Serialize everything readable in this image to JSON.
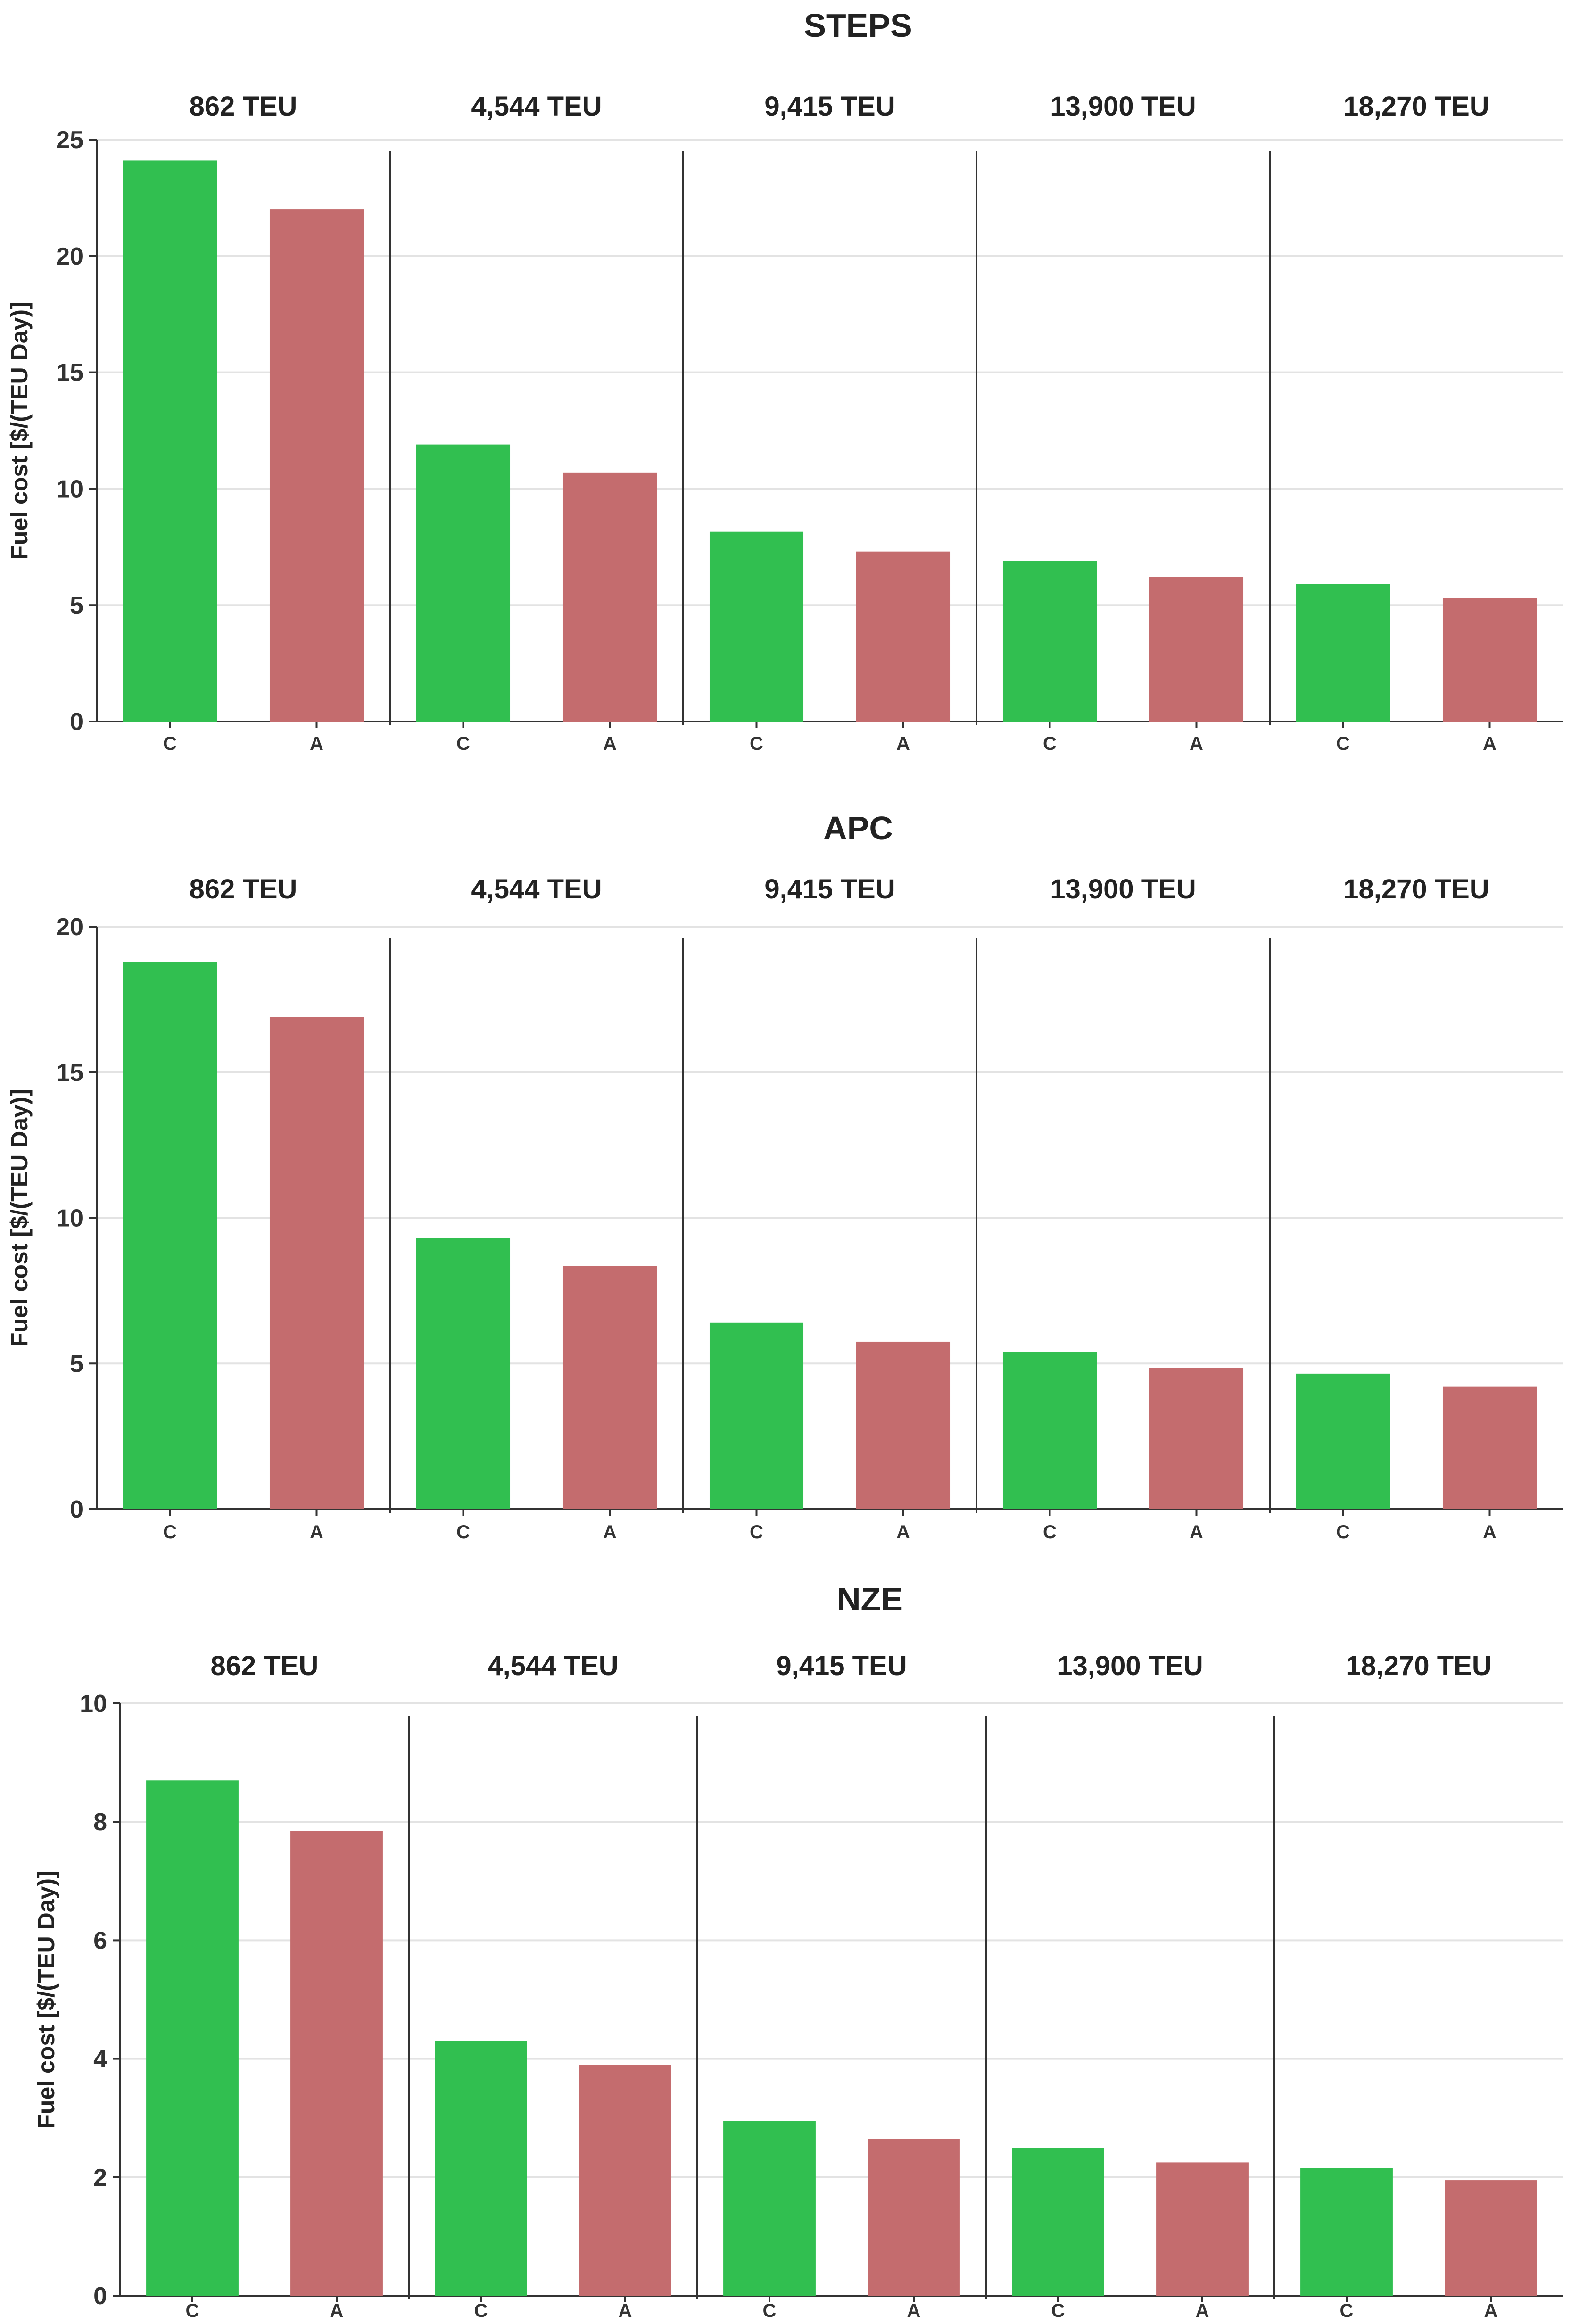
{
  "chart_data": [
    {
      "type": "bar",
      "title": "STEPS",
      "ylabel": "Fuel cost [$/(TEU Day)]",
      "xlabel": "",
      "ylim": [
        0,
        25
      ],
      "yticks": [
        0,
        5,
        10,
        15,
        20,
        25
      ],
      "groups": [
        {
          "label": "862 TEU",
          "bars": [
            {
              "category": "C",
              "value": 24.1
            },
            {
              "category": "A",
              "value": 22.0
            }
          ]
        },
        {
          "label": "4,544 TEU",
          "bars": [
            {
              "category": "C",
              "value": 11.9
            },
            {
              "category": "A",
              "value": 10.7
            }
          ]
        },
        {
          "label": "9,415 TEU",
          "bars": [
            {
              "category": "C",
              "value": 8.15
            },
            {
              "category": "A",
              "value": 7.3
            }
          ]
        },
        {
          "label": "13,900 TEU",
          "bars": [
            {
              "category": "C",
              "value": 6.9
            },
            {
              "category": "A",
              "value": 6.2
            }
          ]
        },
        {
          "label": "18,270 TEU",
          "bars": [
            {
              "category": "C",
              "value": 5.9
            },
            {
              "category": "A",
              "value": 5.3
            }
          ]
        }
      ]
    },
    {
      "type": "bar",
      "title": "APC",
      "ylabel": "Fuel cost [$/(TEU Day)]",
      "xlabel": "",
      "ylim": [
        0,
        20
      ],
      "yticks": [
        0,
        5,
        10,
        15,
        20
      ],
      "groups": [
        {
          "label": "862 TEU",
          "bars": [
            {
              "category": "C",
              "value": 18.8
            },
            {
              "category": "A",
              "value": 16.9
            }
          ]
        },
        {
          "label": "4,544 TEU",
          "bars": [
            {
              "category": "C",
              "value": 9.3
            },
            {
              "category": "A",
              "value": 8.35
            }
          ]
        },
        {
          "label": "9,415 TEU",
          "bars": [
            {
              "category": "C",
              "value": 6.4
            },
            {
              "category": "A",
              "value": 5.75
            }
          ]
        },
        {
          "label": "13,900 TEU",
          "bars": [
            {
              "category": "C",
              "value": 5.4
            },
            {
              "category": "A",
              "value": 4.85
            }
          ]
        },
        {
          "label": "18,270 TEU",
          "bars": [
            {
              "category": "C",
              "value": 4.65
            },
            {
              "category": "A",
              "value": 4.2
            }
          ]
        }
      ]
    },
    {
      "type": "bar",
      "title": "NZE",
      "ylabel": "Fuel cost [$/(TEU Day)]",
      "xlabel": "",
      "ylim": [
        0,
        10
      ],
      "yticks": [
        0,
        2,
        4,
        6,
        8,
        10
      ],
      "groups": [
        {
          "label": "862 TEU",
          "bars": [
            {
              "category": "C",
              "value": 8.7
            },
            {
              "category": "A",
              "value": 7.85
            }
          ]
        },
        {
          "label": "4,544 TEU",
          "bars": [
            {
              "category": "C",
              "value": 4.3
            },
            {
              "category": "A",
              "value": 3.9
            }
          ]
        },
        {
          "label": "9,415 TEU",
          "bars": [
            {
              "category": "C",
              "value": 2.95
            },
            {
              "category": "A",
              "value": 2.65
            }
          ]
        },
        {
          "label": "13,900 TEU",
          "bars": [
            {
              "category": "C",
              "value": 2.5
            },
            {
              "category": "A",
              "value": 2.25
            }
          ]
        },
        {
          "label": "18,270 TEU",
          "bars": [
            {
              "category": "C",
              "value": 2.15
            },
            {
              "category": "A",
              "value": 1.95
            }
          ]
        }
      ]
    }
  ],
  "colors": {
    "C": "#31bf50",
    "A": "#c46c6e"
  }
}
